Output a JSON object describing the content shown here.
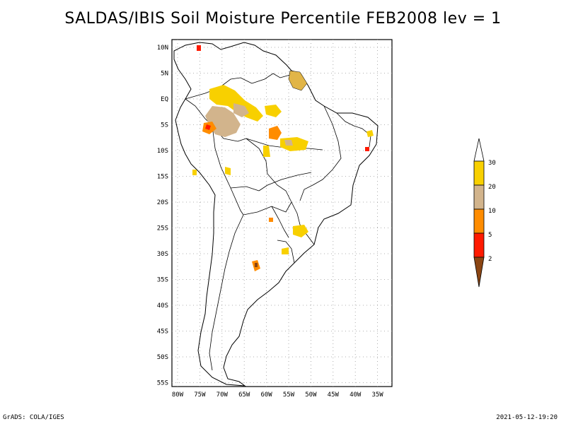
{
  "title": "SALDAS/IBIS Soil Moisture Percentile FEB2008 lev = 1",
  "axes": {
    "lat_labels": [
      "10N",
      "5N",
      "EQ",
      "5S",
      "10S",
      "15S",
      "20S",
      "25S",
      "30S",
      "35S",
      "40S",
      "45S",
      "50S",
      "55S"
    ],
    "lon_labels": [
      "80W",
      "75W",
      "70W",
      "65W",
      "60W",
      "55W",
      "50W",
      "45W",
      "40W",
      "35W"
    ]
  },
  "colorbar": {
    "labels": [
      "30",
      "20",
      "10",
      "5",
      "2"
    ],
    "colors": {
      "top": "#ffffff",
      "c30": "#f8d000",
      "c20": "#d2b48c",
      "c10": "#ff8c00",
      "c5": "#ff1a00",
      "c2": "#8b4513"
    }
  },
  "footer": {
    "left": "GrADS: COLA/IGES",
    "right": "2021-05-12-19:20"
  }
}
